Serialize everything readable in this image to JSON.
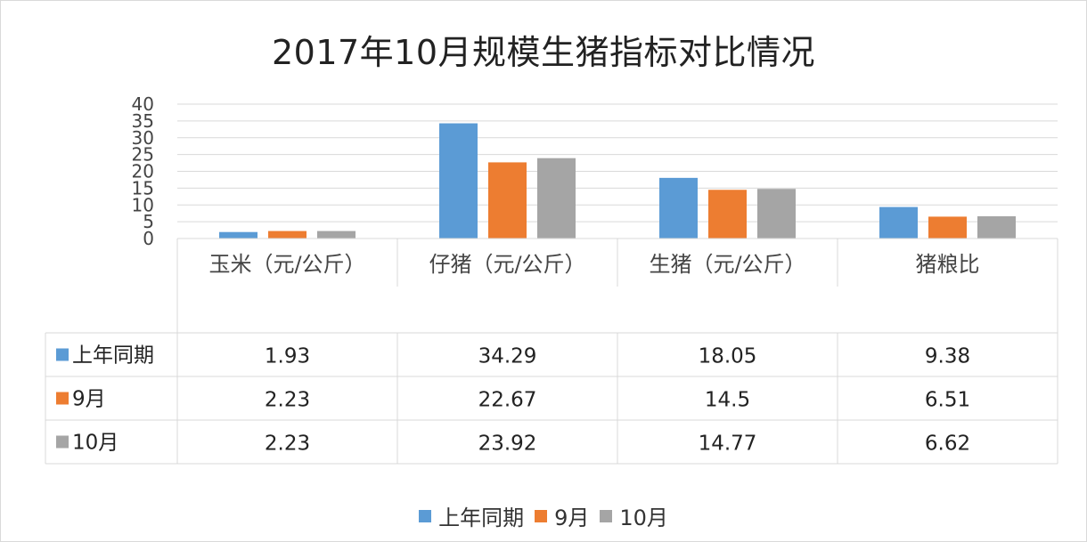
{
  "chart_data": {
    "type": "bar",
    "title": "2017年10月规模生猪指标对比情况",
    "categories": [
      "玉米（元/公斤）",
      "仔猪（元/公斤）",
      "生猪（元/公斤）",
      "猪粮比"
    ],
    "series": [
      {
        "name": "上年同期",
        "values": [
          1.93,
          34.29,
          18.05,
          9.38
        ],
        "color": "#5b9bd5"
      },
      {
        "name": "9月",
        "values": [
          2.23,
          22.67,
          14.5,
          6.51
        ],
        "color": "#ed7d31"
      },
      {
        "name": "10月",
        "values": [
          2.23,
          23.92,
          14.77,
          6.62
        ],
        "color": "#a5a5a5"
      }
    ],
    "value_labels": [
      [
        "1.93",
        "34.29",
        "18.05",
        "9.38"
      ],
      [
        "2.23",
        "22.67",
        "14.5",
        "6.51"
      ],
      [
        "2.23",
        "23.92",
        "14.77",
        "6.62"
      ]
    ],
    "yticks": [
      "0",
      "5",
      "10",
      "15",
      "20",
      "25",
      "30",
      "35",
      "40"
    ],
    "ylim": [
      0,
      40
    ],
    "grid": true,
    "legend_position": "bottom",
    "data_table": true
  }
}
